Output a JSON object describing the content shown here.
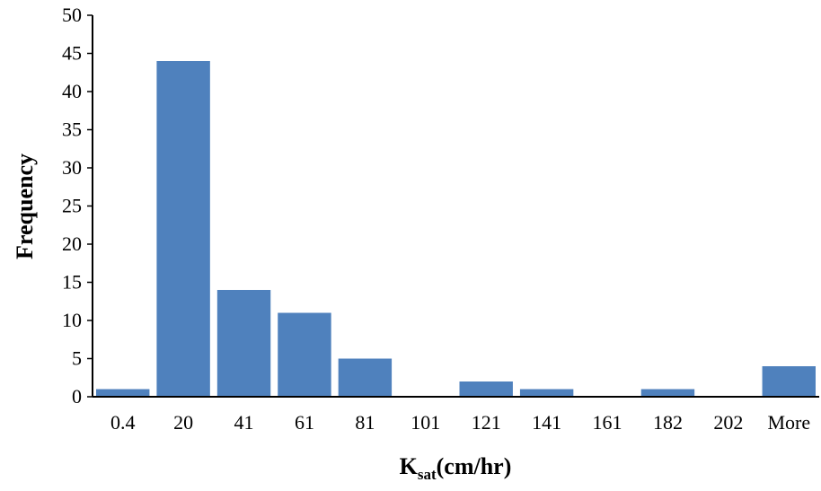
{
  "chart_data": {
    "type": "bar",
    "title": "",
    "xlabel_main": "K",
    "xlabel_sub": "sat",
    "xlabel_suffix": "(cm/hr)",
    "ylabel": "Frequency",
    "categories": [
      "0.4",
      "20",
      "41",
      "61",
      "81",
      "101",
      "121",
      "141",
      "161",
      "182",
      "202",
      "More"
    ],
    "series": [
      {
        "values": [
          1,
          44,
          14,
          11,
          5,
          0,
          2,
          1,
          0,
          1,
          0,
          4
        ]
      }
    ],
    "ylim": [
      0,
      50
    ],
    "yticks": [
      0,
      5,
      10,
      15,
      20,
      25,
      30,
      35,
      40,
      45,
      50
    ],
    "bar_color": "#4f81bd",
    "grid": false,
    "legend": "none"
  }
}
